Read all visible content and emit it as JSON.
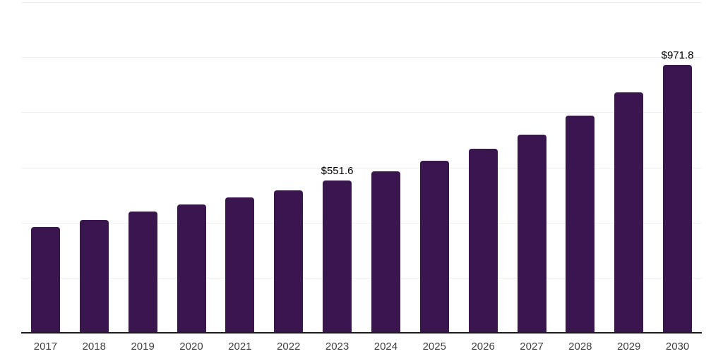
{
  "chart_data": {
    "type": "bar",
    "title": "",
    "xlabel": "",
    "ylabel": "",
    "categories": [
      "2017",
      "2018",
      "2019",
      "2020",
      "2021",
      "2022",
      "2023",
      "2024",
      "2025",
      "2026",
      "2027",
      "2028",
      "2029",
      "2030"
    ],
    "values": [
      383.5,
      409.0,
      439.0,
      464.5,
      491.0,
      518.0,
      551.6,
      586.5,
      624.5,
      667.0,
      719.5,
      788.0,
      872.5,
      971.8
    ],
    "value_labels": [
      {
        "category": "2023",
        "text": "$551.6"
      },
      {
        "category": "2030",
        "text": "$971.8"
      }
    ],
    "ylim": [
      0,
      1200
    ],
    "grid": {
      "visible": true,
      "step": 200,
      "orientation": "horizontal"
    },
    "legend": {
      "visible": false
    },
    "colors": {
      "bar": "#3A164E",
      "gridline": "#EFEFEF",
      "axis_line": "#1A1A1A",
      "tick_label": "#404040",
      "value_label": "#000000",
      "background": "#FFFFFF"
    }
  }
}
